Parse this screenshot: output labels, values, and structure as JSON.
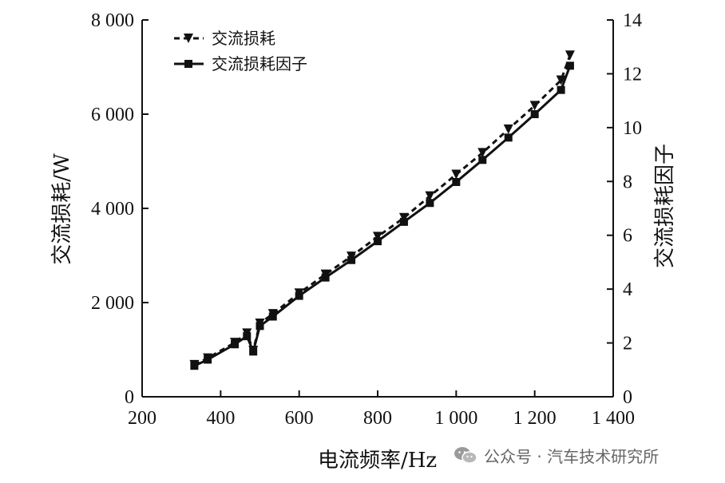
{
  "chart_data": {
    "type": "line",
    "xlabel": "电流频率/Hz",
    "ylabel": "交流损耗/W",
    "y2label": "交流损耗因子",
    "xlim": [
      200,
      1400
    ],
    "ylim": [
      0,
      8000
    ],
    "y2lim": [
      0,
      14
    ],
    "x_ticks": [
      200,
      400,
      600,
      800,
      1000,
      1200,
      1400
    ],
    "x_tick_labels": [
      "200",
      "400",
      "600",
      "800",
      "1 000",
      "1 200",
      "1 400"
    ],
    "y_ticks": [
      0,
      2000,
      4000,
      6000,
      8000
    ],
    "y_tick_labels": [
      "0",
      "2 000",
      "4 000",
      "6 000",
      "8 000"
    ],
    "y2_ticks": [
      0,
      2,
      4,
      6,
      8,
      10,
      12,
      14
    ],
    "y2_tick_labels": [
      "0",
      "2",
      "4",
      "6",
      "8",
      "10",
      "12",
      "14"
    ],
    "grid": false,
    "legend": "top-left",
    "series": [
      {
        "name": "交流损耗",
        "axis": "left",
        "style": "dashed",
        "marker": "triangle-down",
        "color": "#111111",
        "x": [
          333,
          367,
          436,
          467,
          483,
          500,
          533,
          600,
          667,
          733,
          800,
          867,
          933,
          1000,
          1067,
          1133,
          1200,
          1267,
          1290
        ],
        "y": [
          680,
          820,
          1150,
          1350,
          980,
          1560,
          1760,
          2200,
          2600,
          2980,
          3400,
          3800,
          4260,
          4720,
          5180,
          5680,
          6180,
          6720,
          7250
        ]
      },
      {
        "name": "交流损耗因子",
        "axis": "right",
        "style": "solid",
        "marker": "square",
        "color": "#111111",
        "x": [
          333,
          367,
          436,
          467,
          483,
          500,
          533,
          600,
          667,
          733,
          800,
          867,
          933,
          1000,
          1067,
          1133,
          1200,
          1267,
          1290
        ],
        "y": [
          1.15,
          1.38,
          1.95,
          2.25,
          1.68,
          2.63,
          2.98,
          3.75,
          4.43,
          5.08,
          5.78,
          6.5,
          7.2,
          7.98,
          8.8,
          9.63,
          10.5,
          11.4,
          12.3
        ]
      }
    ]
  },
  "watermark": {
    "text": "公众号 · 汽车技术研究所",
    "icon": "wechat-icon"
  }
}
